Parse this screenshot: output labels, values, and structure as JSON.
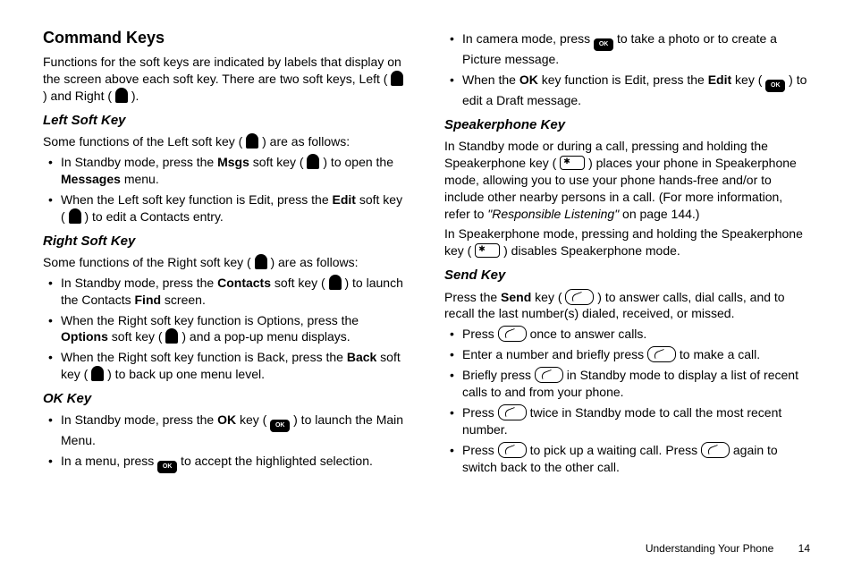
{
  "footer": {
    "section": "Understanding Your Phone",
    "page": "14"
  },
  "left": {
    "heading": "Command Keys",
    "intro": "Functions for the soft keys are indicated by labels that display on the screen above each soft key. There are two soft keys, Left (   ) and Right (   ).",
    "lsk_h": "Left Soft Key",
    "lsk_intro_a": "Some functions of the Left soft key ( ",
    "lsk_intro_b": " ) are as follows:",
    "lsk_b1_a": "In Standby mode, press the ",
    "lsk_b1_b": "Msgs",
    "lsk_b1_c": " soft key ( ",
    "lsk_b1_d": " ) to open the ",
    "lsk_b1_e": "Messages",
    "lsk_b1_f": " menu.",
    "lsk_b2_a": "When the Left soft key function is Edit, press the ",
    "lsk_b2_b": "Edit",
    "lsk_b2_c": " soft key ( ",
    "lsk_b2_d": " ) to edit a Contacts entry.",
    "rsk_h": "Right Soft Key",
    "rsk_intro_a": "Some functions of the Right soft key ( ",
    "rsk_intro_b": " ) are as follows:",
    "rsk_b1_a": "In Standby mode, press the ",
    "rsk_b1_b": "Contacts",
    "rsk_b1_c": " soft key ( ",
    "rsk_b1_d": " ) to launch the Contacts ",
    "rsk_b1_e": "Find",
    "rsk_b1_f": " screen.",
    "rsk_b2_a": "When the Right soft key function is Options, press the ",
    "rsk_b2_b": "Options",
    "rsk_b2_c": " soft key ( ",
    "rsk_b2_d": " ) and a pop-up menu displays.",
    "rsk_b3_a": "When the Right soft key function is Back, press the ",
    "rsk_b3_b": "Back",
    "rsk_b3_c": " soft key ( ",
    "rsk_b3_d": " ) to back up one menu level.",
    "ok_h": "OK Key",
    "ok_b1_a": "In Standby mode, press the ",
    "ok_b1_b": "OK",
    "ok_b1_c": " key ( ",
    "ok_b1_d": " ) to launch the Main Menu.",
    "ok_b2_a": "In a menu, press ",
    "ok_b2_b": " to accept the highlighted selection."
  },
  "right": {
    "cam_a": "In camera mode, press ",
    "cam_b": " to take a photo or to create a Picture message.",
    "okedit_a": "When the ",
    "okedit_b": "OK",
    "okedit_c": " key function is Edit, press the ",
    "okedit_d": "Edit",
    "okedit_e": " key ( ",
    "okedit_f": " ) to edit a Draft message.",
    "spk_h": "Speakerphone Key",
    "spk_p1_a": "In Standby mode or during a call, pressing and holding the Speakerphone key ( ",
    "spk_p1_b": " ) places your phone in Speakerphone mode, allowing you to use your phone hands-free and/or to include other nearby persons in a call. (For more information, refer to ",
    "spk_ref": "\"Responsible Listening\"",
    "spk_p1_c": "  on page 144.)",
    "spk_p2_a": "In Speakerphone mode, pressing and holding the Speakerphone key ( ",
    "spk_p2_b": " ) disables Speakerphone mode.",
    "send_h": "Send Key",
    "send_p_a": "Press the ",
    "send_p_b": "Send",
    "send_p_c": " key ( ",
    "send_p_d": " ) to answer calls, dial calls, and to recall the last number(s) dialed, received, or missed.",
    "sb1_a": "Press ",
    "sb1_b": " once to answer calls.",
    "sb2_a": "Enter a number and briefly press ",
    "sb2_b": " to make a call.",
    "sb3_a": "Briefly press ",
    "sb3_b": " in Standby mode to display a list of recent calls to and from your phone.",
    "sb4_a": "Press ",
    "sb4_b": " twice in Standby mode to call the most recent number.",
    "sb5_a": "Press ",
    "sb5_b": " to pick up a waiting call. Press ",
    "sb5_c": " again to switch back to the other call."
  }
}
